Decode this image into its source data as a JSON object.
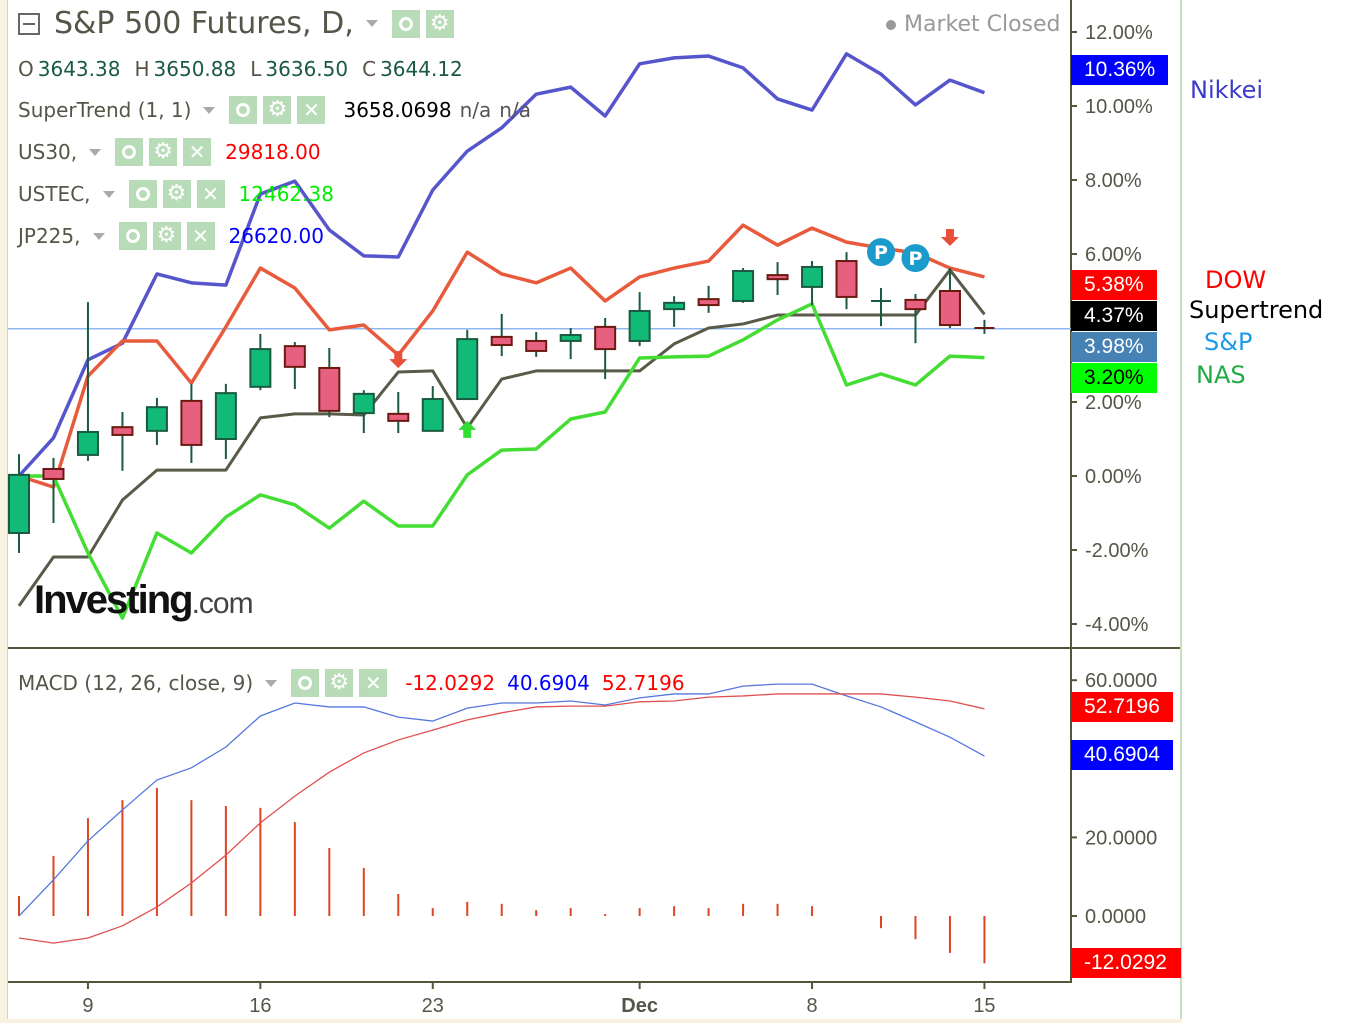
{
  "header": {
    "title": "S&P 500 Futures, D,",
    "ohlc": {
      "o_label": "O",
      "o": "3643.38",
      "h_label": "H",
      "h": "3650.88",
      "l_label": "L",
      "l": "3636.50",
      "c_label": "C",
      "c": "3644.12"
    },
    "market_status": "Market Closed"
  },
  "indicators": [
    {
      "name": "SuperTrend (1, 1)",
      "values": [
        "3658.0698",
        "n/a",
        "n/a"
      ],
      "color": "#000000"
    },
    {
      "name": "US30,",
      "values": [
        "29818.00"
      ],
      "color": "#ff0000"
    },
    {
      "name": "USTEC,",
      "values": [
        "12462.38"
      ],
      "color": "#00ee00"
    },
    {
      "name": "JP225,",
      "values": [
        "26620.00"
      ],
      "color": "#0000ff"
    }
  ],
  "macd_legend": {
    "name": "MACD (12, 26, close, 9)",
    "values": [
      "-12.0292",
      "40.6904",
      "52.7196"
    ],
    "colors": [
      "#ff0000",
      "#0000ff",
      "#ff0000"
    ]
  },
  "price_tags": [
    {
      "text": "10.36%",
      "bg": "#0000ff",
      "fg": "#ffffff"
    },
    {
      "text": "5.38%",
      "bg": "#ff0000",
      "fg": "#ffffff"
    },
    {
      "text": "4.37%",
      "bg": "#000000",
      "fg": "#ffffff"
    },
    {
      "text": "3.98%",
      "bg": "#4682b4",
      "fg": "#ffffff"
    },
    {
      "text": "3.20%",
      "bg": "#00ff00",
      "fg": "#000000"
    }
  ],
  "macd_tags": [
    {
      "text": "52.7196",
      "bg": "#ff0000",
      "fg": "#ffffff"
    },
    {
      "text": "40.6904",
      "bg": "#0000ff",
      "fg": "#ffffff"
    },
    {
      "text": "-12.0292",
      "bg": "#ff0000",
      "fg": "#ffffff"
    }
  ],
  "side_labels": [
    {
      "text": "Nikkei",
      "color": "#3a3acc"
    },
    {
      "text": "DOW",
      "color": "#ff0000"
    },
    {
      "text": "Supertrend",
      "color": "#000000"
    },
    {
      "text": "S&P",
      "color": "#1e9be8"
    },
    {
      "text": "NAS",
      "color": "#22aa44"
    }
  ],
  "logo": "Investing.com",
  "chart_data": [
    {
      "type": "candlestick",
      "yaxis": {
        "ticks": [
          "12.00%",
          "10.00%",
          "8.00%",
          "6.00%",
          "2.00%",
          "0.00%",
          "-2.00%",
          "-4.00%"
        ],
        "tick_values": [
          12,
          10,
          8,
          6,
          2,
          0,
          -2,
          -4
        ],
        "range": [
          -4.6,
          13
        ]
      },
      "x_ticks": [
        {
          "label": "9",
          "index": 2
        },
        {
          "label": "16",
          "index": 7
        },
        {
          "label": "23",
          "index": 12
        },
        {
          "label": "Dec",
          "index": 18
        },
        {
          "label": "8",
          "index": 23
        },
        {
          "label": "15",
          "index": 28
        }
      ],
      "candles": [
        [
          -1.54,
          0.59,
          -2.08,
          0.03
        ],
        [
          0.19,
          0.49,
          -1.27,
          -0.08
        ],
        [
          0.57,
          4.7,
          0.41,
          1.19
        ],
        [
          1.32,
          1.73,
          0.14,
          1.11
        ],
        [
          1.22,
          2.11,
          0.84,
          1.86
        ],
        [
          2.03,
          2.49,
          0.35,
          0.84
        ],
        [
          1.0,
          2.49,
          0.46,
          2.24
        ],
        [
          2.41,
          3.84,
          2.32,
          3.43
        ],
        [
          3.51,
          3.62,
          2.35,
          2.95
        ],
        [
          2.92,
          3.46,
          1.59,
          1.76
        ],
        [
          1.7,
          2.32,
          1.16,
          2.22
        ],
        [
          1.68,
          2.27,
          1.16,
          1.49
        ],
        [
          1.22,
          2.43,
          1.22,
          2.08
        ],
        [
          2.08,
          3.95,
          2.08,
          3.7
        ],
        [
          3.76,
          4.38,
          3.24,
          3.54
        ],
        [
          3.65,
          3.89,
          3.22,
          3.38
        ],
        [
          3.65,
          4.0,
          3.16,
          3.81
        ],
        [
          4.03,
          4.27,
          2.62,
          3.43
        ],
        [
          3.65,
          4.97,
          3.51,
          4.46
        ],
        [
          4.51,
          4.86,
          4.03,
          4.68
        ],
        [
          4.78,
          5.14,
          4.41,
          4.62
        ],
        [
          4.73,
          5.62,
          4.68,
          5.54
        ],
        [
          5.43,
          5.78,
          4.89,
          5.32
        ],
        [
          5.11,
          5.81,
          4.62,
          5.65
        ],
        [
          5.81,
          6.05,
          4.51,
          4.84
        ],
        [
          4.73,
          5.08,
          4.05,
          4.73
        ],
        [
          4.76,
          4.92,
          3.59,
          4.51
        ],
        [
          5.0,
          5.62,
          4.0,
          4.08
        ],
        [
          4.0,
          4.22,
          3.84,
          3.98
        ]
      ],
      "candle_fields": [
        "open",
        "high",
        "low",
        "close"
      ],
      "series": [
        {
          "name": "Nikkei",
          "color": "#5555cc",
          "values": [
            0,
            1.03,
            3.14,
            3.59,
            5.46,
            5.22,
            5.16,
            7.62,
            7.97,
            6.65,
            5.95,
            5.92,
            7.73,
            8.78,
            9.41,
            10.32,
            10.51,
            9.73,
            11.14,
            11.3,
            11.35,
            11.03,
            10.19,
            9.89,
            11.41,
            10.86,
            10.03,
            10.7,
            10.36
          ]
        },
        {
          "name": "DOW",
          "color": "#e85a3c",
          "values": [
            0,
            -0.3,
            2.7,
            3.65,
            3.65,
            2.51,
            4.03,
            5.62,
            5.08,
            3.95,
            4.08,
            3.27,
            4.46,
            6.05,
            5.46,
            5.22,
            5.62,
            4.73,
            5.38,
            5.62,
            5.81,
            6.78,
            6.24,
            6.7,
            6.32,
            6.16,
            6.03,
            5.62,
            5.38
          ]
        },
        {
          "name": "Supertrend",
          "color": "#5a5a48",
          "values": [
            -3.51,
            -2.19,
            -2.19,
            -0.65,
            0.16,
            0.16,
            0.16,
            1.57,
            1.68,
            1.68,
            1.65,
            2.81,
            2.84,
            1.3,
            2.62,
            2.84,
            2.84,
            2.84,
            2.84,
            3.57,
            4.0,
            4.11,
            4.35,
            4.35,
            4.35,
            4.35,
            4.35,
            5.57,
            4.37
          ]
        },
        {
          "name": "NAS",
          "color": "#44dd33",
          "values": [
            0,
            0,
            -2.08,
            -3.84,
            -1.54,
            -2.08,
            -1.11,
            -0.51,
            -0.78,
            -1.41,
            -0.68,
            -1.35,
            -1.35,
            0.03,
            0.7,
            0.73,
            1.54,
            1.73,
            3.19,
            3.22,
            3.24,
            3.68,
            4.22,
            4.65,
            2.46,
            2.76,
            2.46,
            3.24,
            3.2
          ]
        },
        {
          "name": "S&P",
          "color": "#8fb8ee",
          "horizontal": 3.98
        }
      ],
      "markers": [
        {
          "type": "sell-arrow",
          "index": 11,
          "value": 3.05,
          "color": "#e8503c"
        },
        {
          "type": "buy-arrow",
          "index": 13,
          "value": 1.3,
          "color": "#33dd33"
        },
        {
          "type": "sell-arrow",
          "index": 27,
          "value": 6.35,
          "color": "#e8503c"
        },
        {
          "type": "pivot",
          "label": "P",
          "index": 25,
          "value": 6.05,
          "color": "#1a9bcc"
        },
        {
          "type": "pivot",
          "label": "P",
          "index": 26,
          "value": 5.89,
          "color": "#1a9bcc"
        }
      ]
    },
    {
      "type": "macd",
      "yaxis": {
        "ticks": [
          "60.0000",
          "20.0000",
          "0.0000"
        ],
        "tick_values": [
          60,
          20,
          0
        ]
      },
      "macd": [
        0,
        9.2,
        19.1,
        27.0,
        34.6,
        37.7,
        43.0,
        50.9,
        54.2,
        53.2,
        53.2,
        50.6,
        49.6,
        52.9,
        54.2,
        54.2,
        54.7,
        53.7,
        55.5,
        56.5,
        56.5,
        58.5,
        59.0,
        59.0,
        56.0,
        53.2,
        49.4,
        45.5,
        40.69
      ],
      "signal": [
        -5.6,
        -6.9,
        -5.6,
        -2.5,
        2.3,
        8.4,
        15.5,
        23.7,
        30.5,
        36.6,
        41.5,
        44.8,
        47.3,
        49.9,
        51.7,
        53.2,
        53.4,
        53.4,
        54.5,
        54.7,
        55.7,
        56.0,
        56.5,
        56.5,
        56.5,
        56.5,
        55.7,
        54.7,
        52.72
      ],
      "histogram": [
        5.1,
        15.3,
        24.9,
        29.5,
        32.6,
        29.5,
        28.0,
        27.5,
        23.9,
        17.3,
        12.2,
        5.6,
        2.0,
        3.6,
        3.1,
        1.5,
        2.0,
        0.5,
        2.0,
        2.5,
        2.0,
        3.1,
        3.1,
        2.5,
        0,
        -3.1,
        -5.9,
        -9.4,
        -12.03
      ],
      "colors": {
        "macd": "#5577dd",
        "signal": "#e05050",
        "histogram": "#dd4422"
      }
    }
  ]
}
